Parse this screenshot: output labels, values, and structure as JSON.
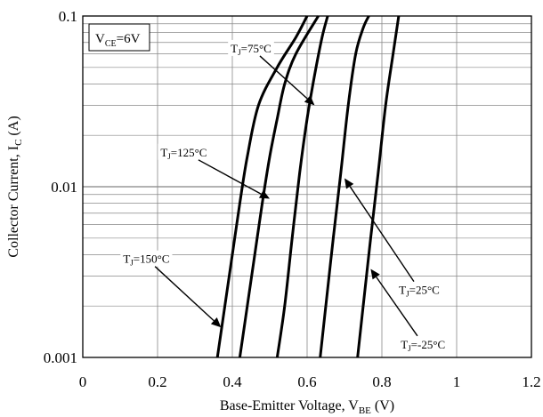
{
  "chart_data": {
    "type": "line",
    "x_scale": "linear",
    "y_scale": "log",
    "xlim": [
      0,
      1.2
    ],
    "ylim": [
      0.001,
      0.1
    ],
    "x_ticks": [
      {
        "value": 0,
        "label": "0"
      },
      {
        "value": 0.2,
        "label": "0.2"
      },
      {
        "value": 0.4,
        "label": "0.4"
      },
      {
        "value": 0.6,
        "label": "0.6"
      },
      {
        "value": 0.8,
        "label": "0.8"
      },
      {
        "value": 1.0,
        "label": "1"
      },
      {
        "value": 1.2,
        "label": "1.2"
      }
    ],
    "y_ticks": [
      {
        "value": 0.001,
        "label": "0.001"
      },
      {
        "value": 0.01,
        "label": "0.01"
      },
      {
        "value": 0.1,
        "label": "0.1"
      }
    ],
    "grid": true,
    "xlabel": {
      "main": "Base-Emitter Voltage, V",
      "sub": "BE",
      "unit": " (V)"
    },
    "ylabel": {
      "main": "Collector Current, I",
      "sub": "C",
      "unit": " (A)"
    },
    "condition_box": {
      "main": "V",
      "sub": "CE",
      "rest": "=6V"
    },
    "series": [
      {
        "temp": "150°C",
        "points": [
          [
            0.36,
            0.001
          ],
          [
            0.38,
            0.002
          ],
          [
            0.4,
            0.004
          ],
          [
            0.42,
            0.008
          ],
          [
            0.44,
            0.015
          ],
          [
            0.47,
            0.03
          ],
          [
            0.52,
            0.05
          ],
          [
            0.57,
            0.075
          ],
          [
            0.6,
            0.1
          ]
        ]
      },
      {
        "temp": "125°C",
        "points": [
          [
            0.42,
            0.001
          ],
          [
            0.44,
            0.002
          ],
          [
            0.46,
            0.004
          ],
          [
            0.48,
            0.008
          ],
          [
            0.5,
            0.015
          ],
          [
            0.52,
            0.025
          ],
          [
            0.54,
            0.04
          ],
          [
            0.57,
            0.06
          ],
          [
            0.63,
            0.1
          ]
        ]
      },
      {
        "temp": "75°C",
        "points": [
          [
            0.52,
            0.001
          ],
          [
            0.54,
            0.002
          ],
          [
            0.56,
            0.005
          ],
          [
            0.58,
            0.012
          ],
          [
            0.6,
            0.025
          ],
          [
            0.62,
            0.045
          ],
          [
            0.64,
            0.075
          ],
          [
            0.655,
            0.1
          ]
        ]
      },
      {
        "temp": "25°C",
        "points": [
          [
            0.635,
            0.001
          ],
          [
            0.65,
            0.002
          ],
          [
            0.67,
            0.005
          ],
          [
            0.69,
            0.012
          ],
          [
            0.71,
            0.03
          ],
          [
            0.73,
            0.06
          ],
          [
            0.75,
            0.085
          ],
          [
            0.765,
            0.1
          ]
        ]
      },
      {
        "temp": "-25°C",
        "points": [
          [
            0.735,
            0.001
          ],
          [
            0.75,
            0.002
          ],
          [
            0.77,
            0.005
          ],
          [
            0.79,
            0.012
          ],
          [
            0.81,
            0.03
          ],
          [
            0.83,
            0.06
          ],
          [
            0.845,
            0.1
          ]
        ]
      }
    ],
    "annotations": [
      {
        "main": "T",
        "sub": "J",
        "rest": "=75°C",
        "label_at": [
          0.45,
          0.065
        ],
        "arrow_to": [
          0.62,
          0.03
        ]
      },
      {
        "main": "T",
        "sub": "J",
        "rest": "=125°C",
        "label_at": [
          0.27,
          0.016
        ],
        "arrow_to": [
          0.5,
          0.0085
        ]
      },
      {
        "main": "T",
        "sub": "J",
        "rest": "=150°C",
        "label_at": [
          0.17,
          0.0038
        ],
        "arrow_to": [
          0.37,
          0.0015
        ]
      },
      {
        "main": "T",
        "sub": "J",
        "rest": "=25°C",
        "label_at": [
          0.9,
          0.0025
        ],
        "arrow_to": [
          0.7,
          0.0112
        ]
      },
      {
        "main": "T",
        "sub": "J",
        "rest": "=-25°C",
        "label_at": [
          0.91,
          0.0012
        ],
        "arrow_to": [
          0.77,
          0.0033
        ]
      }
    ]
  }
}
